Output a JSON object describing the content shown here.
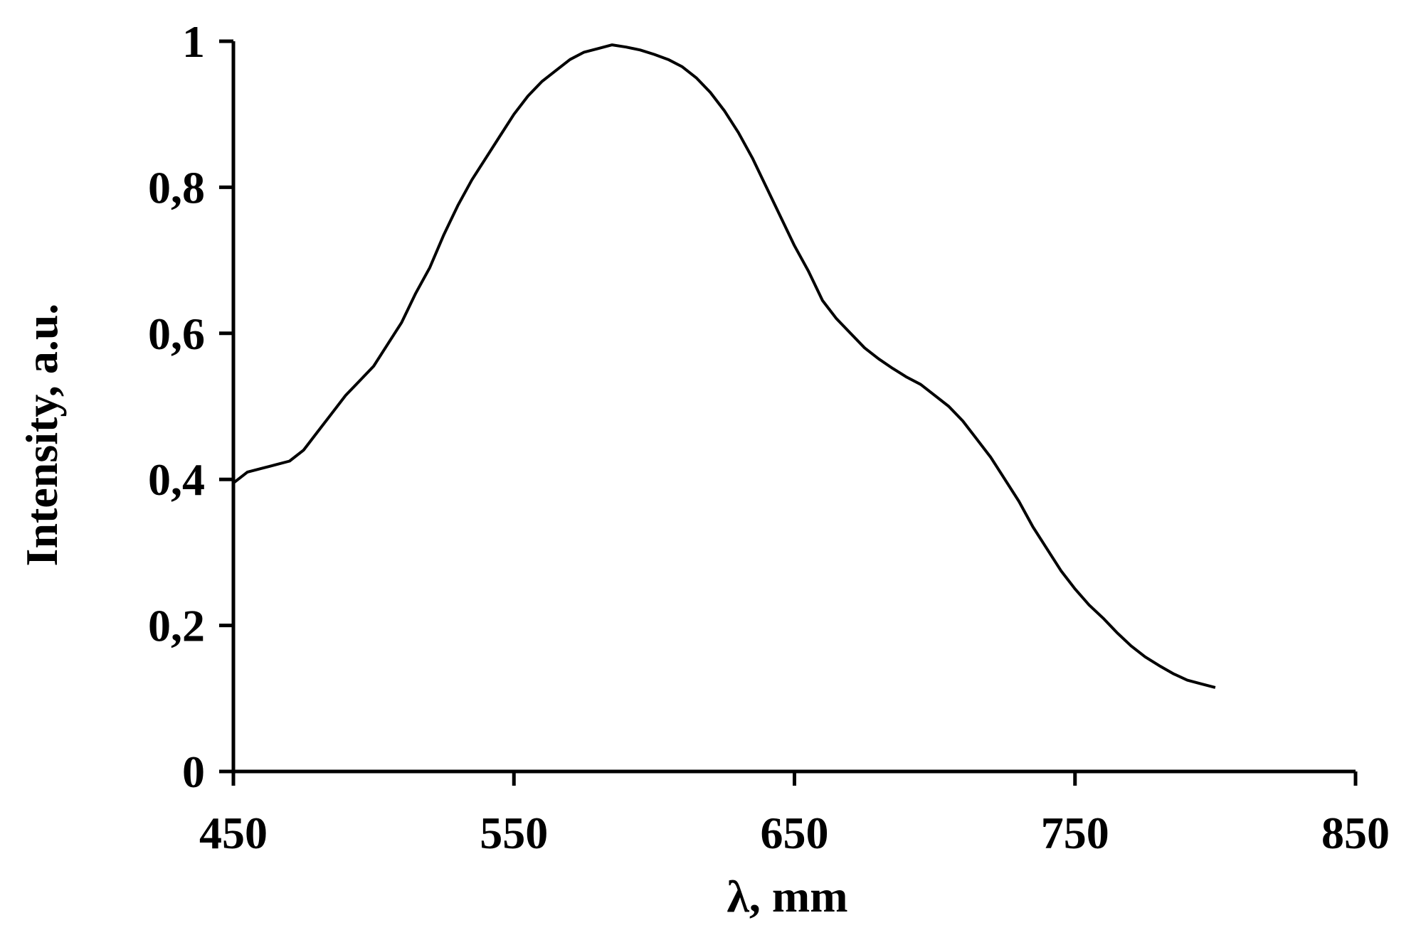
{
  "chart_data": {
    "type": "line",
    "title": "",
    "xlabel": "λ, mm",
    "ylabel": "Intensity, a.u.",
    "xlim": [
      450,
      850
    ],
    "ylim": [
      0,
      1
    ],
    "x_ticks": [
      450,
      550,
      650,
      750,
      850
    ],
    "y_ticks": [
      0,
      0.2,
      0.4,
      0.6,
      0.8,
      1
    ],
    "x_tick_labels": [
      "450",
      "550",
      "650",
      "750",
      "850"
    ],
    "y_tick_labels": [
      "0",
      "0,2",
      "0,4",
      "0,6",
      "0,8",
      "1"
    ],
    "grid": false,
    "legend": "none",
    "series": [
      {
        "x": [
          450,
          455,
          460,
          465,
          470,
          475,
          480,
          485,
          490,
          495,
          500,
          505,
          510,
          515,
          520,
          525,
          530,
          535,
          540,
          545,
          550,
          555,
          560,
          565,
          570,
          575,
          580,
          585,
          590,
          595,
          600,
          605,
          610,
          615,
          620,
          625,
          630,
          635,
          640,
          645,
          650,
          655,
          660,
          665,
          670,
          675,
          680,
          685,
          690,
          695,
          700,
          705,
          710,
          715,
          720,
          725,
          730,
          735,
          740,
          745,
          750,
          755,
          760,
          765,
          770,
          775,
          780,
          785,
          790,
          795,
          800
        ],
        "y": [
          0.395,
          0.41,
          0.415,
          0.42,
          0.425,
          0.44,
          0.465,
          0.49,
          0.515,
          0.535,
          0.555,
          0.585,
          0.615,
          0.655,
          0.69,
          0.735,
          0.775,
          0.81,
          0.84,
          0.87,
          0.9,
          0.925,
          0.945,
          0.96,
          0.975,
          0.985,
          0.99,
          0.995,
          0.992,
          0.988,
          0.982,
          0.975,
          0.965,
          0.95,
          0.93,
          0.905,
          0.875,
          0.84,
          0.8,
          0.76,
          0.72,
          0.685,
          0.645,
          0.62,
          0.6,
          0.58,
          0.565,
          0.552,
          0.54,
          0.53,
          0.515,
          0.5,
          0.48,
          0.455,
          0.43,
          0.4,
          0.37,
          0.335,
          0.305,
          0.275,
          0.25,
          0.228,
          0.21,
          0.19,
          0.172,
          0.157,
          0.145,
          0.134,
          0.125,
          0.12,
          0.115
        ]
      }
    ]
  }
}
